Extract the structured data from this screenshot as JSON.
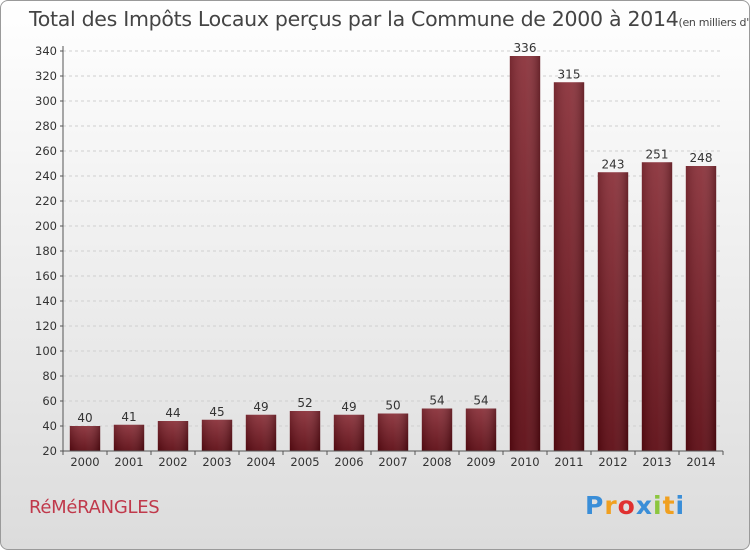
{
  "chart_data": {
    "type": "bar",
    "title": "Total des Impôts Locaux perçus par la Commune de 2000 à 2014",
    "title_unit": "(en milliers d'€)",
    "categories": [
      "2000",
      "2001",
      "2002",
      "2003",
      "2004",
      "2005",
      "2006",
      "2007",
      "2008",
      "2009",
      "2010",
      "2011",
      "2012",
      "2013",
      "2014"
    ],
    "values": [
      40,
      41,
      44,
      45,
      49,
      52,
      49,
      50,
      54,
      54,
      336,
      315,
      243,
      251,
      248
    ],
    "ylim": [
      20,
      340
    ],
    "yticks": [
      20,
      40,
      60,
      80,
      100,
      120,
      140,
      160,
      180,
      200,
      220,
      240,
      260,
      280,
      300,
      320,
      340
    ],
    "grid": true,
    "bar_color": "#7a1f28"
  },
  "footer": {
    "commune": "RéMéRANGLES",
    "logo_letters": [
      "P",
      "r",
      "o",
      "x",
      "i",
      "t",
      "i"
    ],
    "logo_colors": [
      "#3a8ed8",
      "#f0a020",
      "#e03030",
      "#3a8ed8",
      "#8cc63f",
      "#f0a020",
      "#3a8ed8"
    ]
  }
}
